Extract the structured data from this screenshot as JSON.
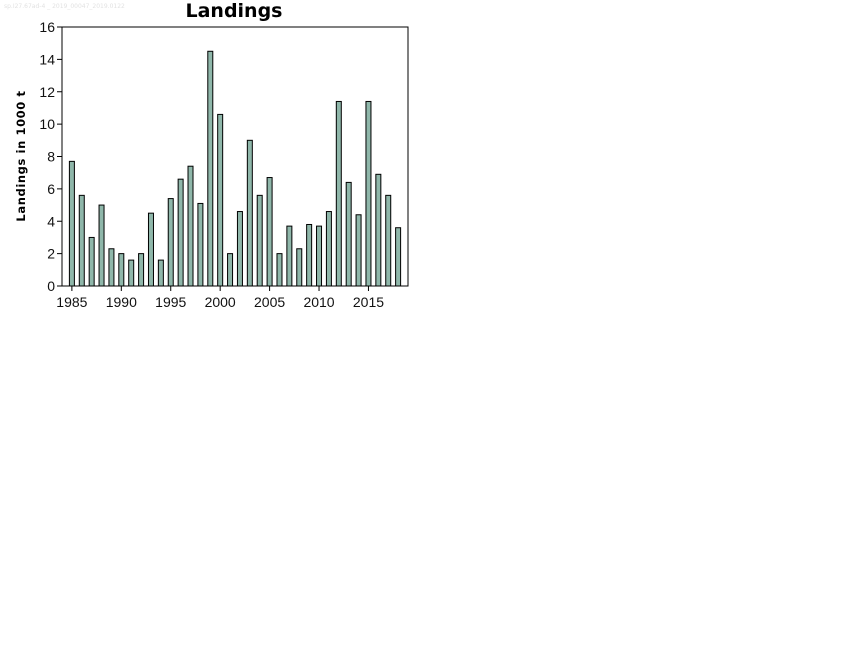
{
  "watermark": "sp.I27.67ad-4 _ 2019_00047_2019.0122",
  "chart_data": {
    "type": "bar",
    "title": "Landings",
    "xlabel": "",
    "ylabel": "Landings in 1000 t",
    "ylim": [
      0,
      16
    ],
    "yticks": [
      0,
      2,
      4,
      6,
      8,
      10,
      12,
      14,
      16
    ],
    "xticks": [
      1985,
      1990,
      1995,
      2000,
      2005,
      2010,
      2015
    ],
    "xlim": [
      1984,
      2019
    ],
    "grid": false,
    "legend": "none",
    "bar_color": "#8fb7aa",
    "bar_edge_color": "#000000",
    "categories": [
      1985,
      1986,
      1987,
      1988,
      1989,
      1990,
      1991,
      1992,
      1993,
      1994,
      1995,
      1996,
      1997,
      1998,
      1999,
      2000,
      2001,
      2002,
      2003,
      2004,
      2005,
      2006,
      2007,
      2008,
      2009,
      2010,
      2011,
      2012,
      2013,
      2014,
      2015,
      2016,
      2017,
      2018
    ],
    "values": [
      7.7,
      5.6,
      3.0,
      5.0,
      2.3,
      2.0,
      1.6,
      2.0,
      4.5,
      1.6,
      5.4,
      6.6,
      7.4,
      5.1,
      14.5,
      10.6,
      2.0,
      4.6,
      9.0,
      5.6,
      6.7,
      2.0,
      3.7,
      2.3,
      3.8,
      3.7,
      4.6,
      11.4,
      6.4,
      4.4,
      11.4,
      6.9,
      5.6,
      3.6
    ]
  }
}
